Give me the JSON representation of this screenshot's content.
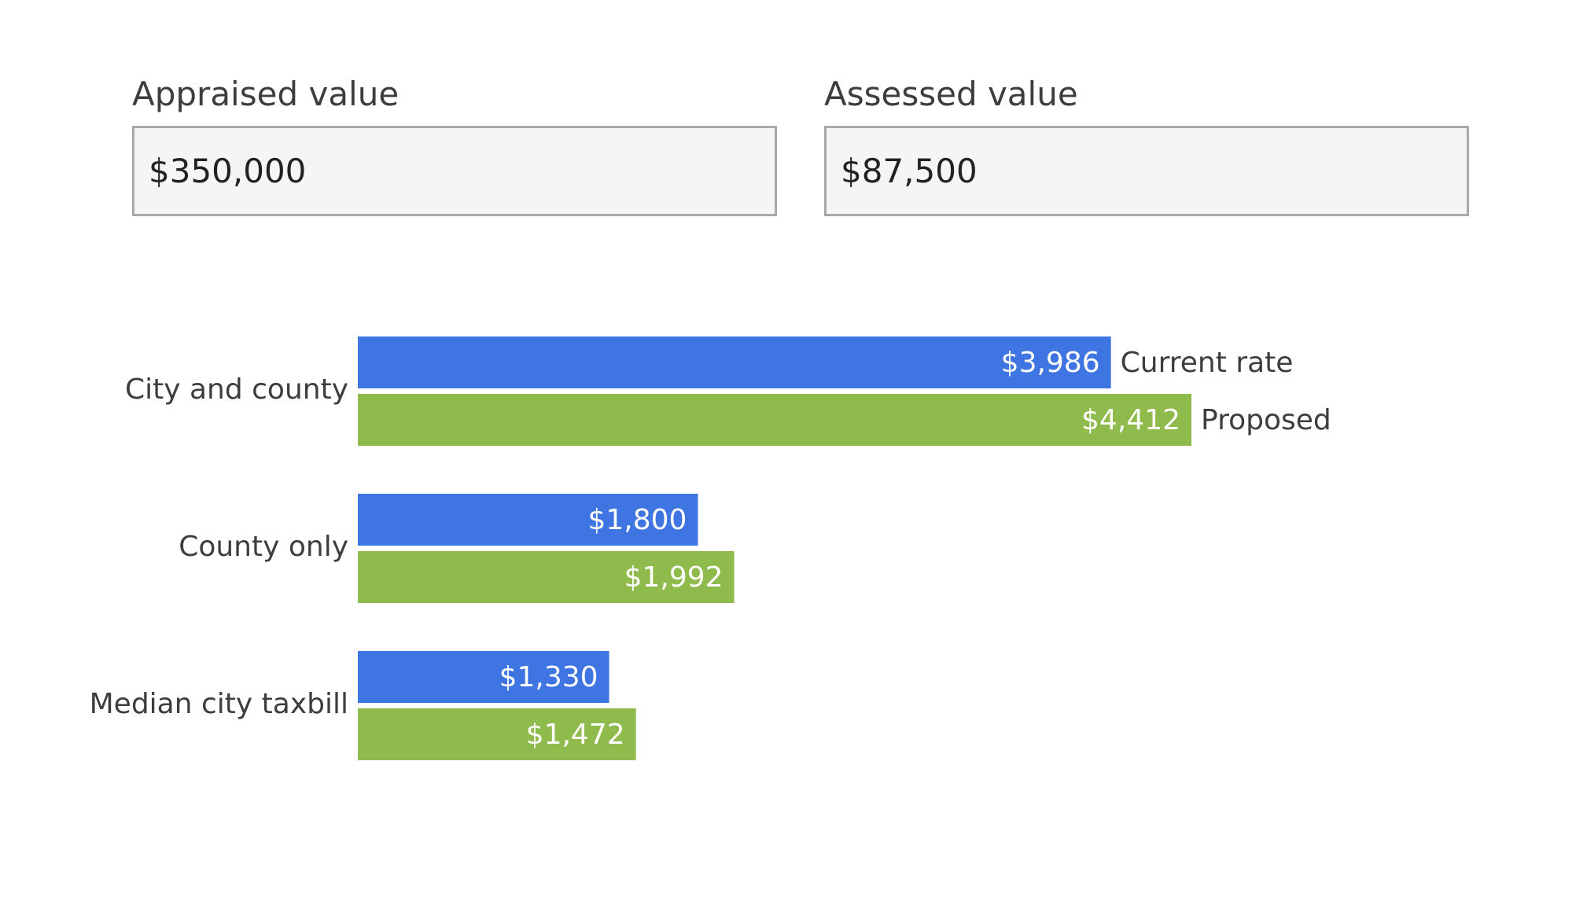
{
  "form": {
    "appraised": {
      "label": "Appraised value",
      "value": "$350,000"
    },
    "assessed": {
      "label": "Assessed value",
      "value": "$87,500"
    }
  },
  "chart_data": {
    "type": "bar",
    "orientation": "horizontal",
    "categories": [
      "City and county",
      "County only",
      "Median city taxbill"
    ],
    "series": [
      {
        "name": "Current rate",
        "color": "#3f74e3",
        "values": [
          3986,
          1800,
          1330
        ],
        "labels": [
          "$3,986",
          "$1,800",
          "$1,330"
        ]
      },
      {
        "name": "Proposed",
        "color": "#8fbb4c",
        "values": [
          4412,
          1992,
          1472
        ],
        "labels": [
          "$4,412",
          "$1,992",
          "$1,472"
        ]
      }
    ],
    "legend_placement": "inline-right-of-first-group",
    "xlim": [
      0,
      4412
    ],
    "grid": false
  }
}
